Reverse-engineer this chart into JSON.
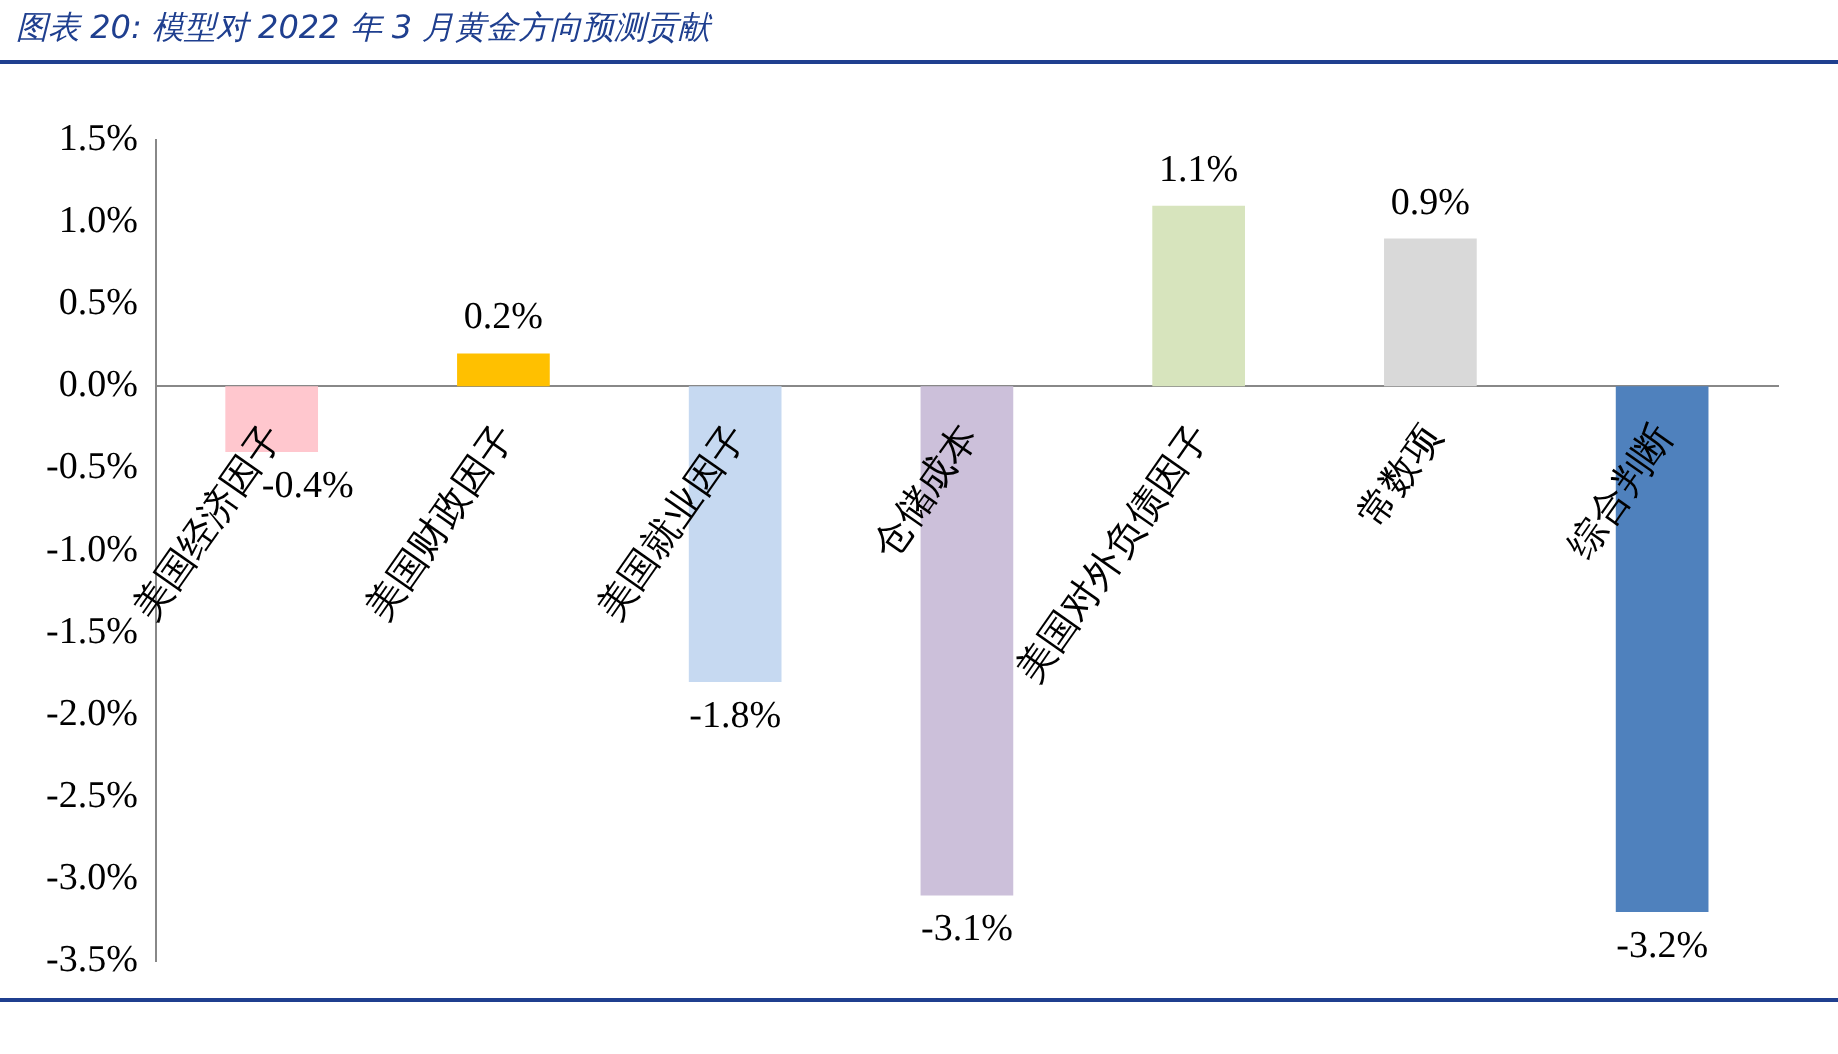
{
  "chart_data": {
    "type": "bar",
    "title": "图表 20: 模型对 2022 年 3 月黄金方向预测贡献",
    "categories": [
      "美国经济因子",
      "美国财政因子",
      "美国就业因子",
      "仓储成本",
      "美国对外负债因子",
      "常数项",
      "综合判断"
    ],
    "values": [
      -0.4,
      0.2,
      -1.8,
      -3.1,
      1.1,
      0.9,
      -3.2
    ],
    "colors": [
      "#ffc7ce",
      "#ffc000",
      "#c6d9f1",
      "#ccc0da",
      "#d7e4bd",
      "#d9d9d9",
      "#4f81bd"
    ],
    "value_labels": [
      "-0.4%",
      "0.2%",
      "-1.8%",
      "-3.1%",
      "1.1%",
      "0.9%",
      "-3.2%"
    ],
    "ylim": [
      -3.5,
      1.5
    ],
    "yticks": [
      {
        "value": 1.5,
        "label": "1.5%"
      },
      {
        "value": 1,
        "label": "1.0%"
      },
      {
        "value": 0.5,
        "label": "0.5%"
      },
      {
        "value": 0,
        "label": "0.0%"
      },
      {
        "value": -0.5,
        "label": "-0.5%"
      },
      {
        "value": -1,
        "label": "-1.0%"
      },
      {
        "value": -1.5,
        "label": "-1.5%"
      },
      {
        "value": -2,
        "label": "-2.0%"
      },
      {
        "value": -2.5,
        "label": "-2.5%"
      },
      {
        "value": -3,
        "label": "-3.0%"
      },
      {
        "value": -3.5,
        "label": "-3.5%"
      }
    ],
    "grid": false,
    "legend": false
  }
}
